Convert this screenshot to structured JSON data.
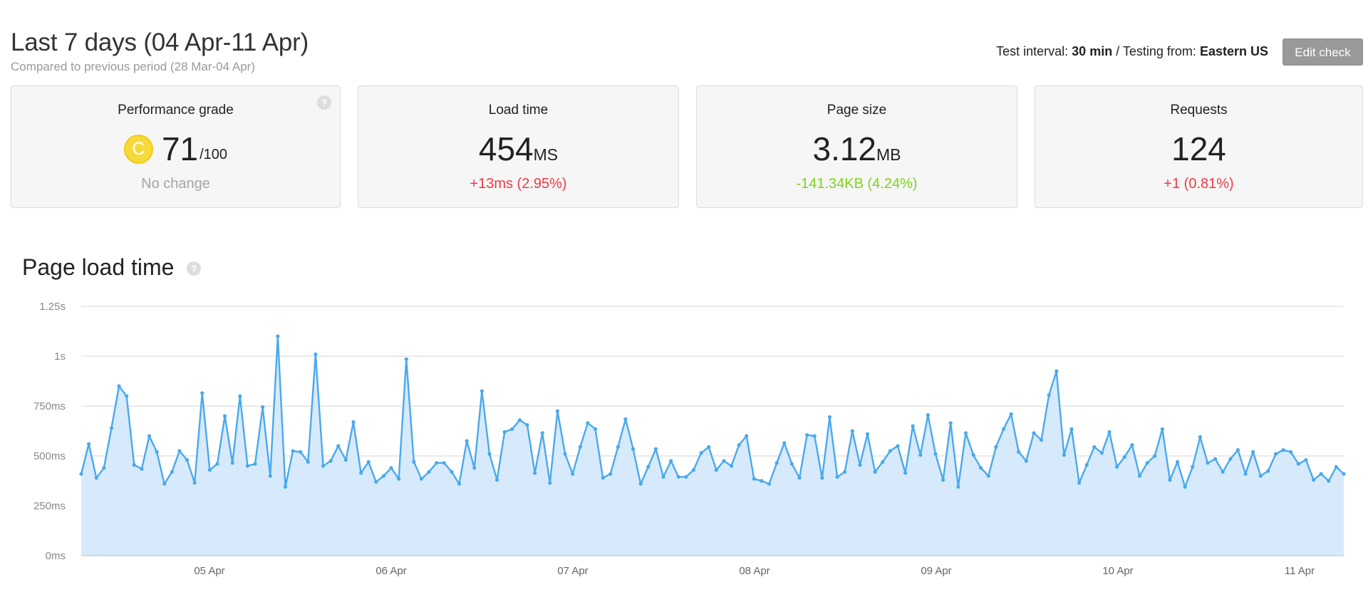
{
  "header": {
    "title": "Last 7 days (04 Apr-11 Apr)",
    "subtitle": "Compared to previous period (28 Mar-04 Apr)",
    "interval_label": "Test interval:",
    "interval_value": "30 min",
    "separator": "/ Testing from:",
    "location": "Eastern US",
    "edit_label": "Edit check"
  },
  "cards": {
    "grade": {
      "title": "Performance grade",
      "letter": "C",
      "score": "71",
      "max": "/100",
      "delta": "No change",
      "help": "?"
    },
    "load": {
      "title": "Load time",
      "value": "454",
      "unit": "MS",
      "delta": "+13ms (2.95%)"
    },
    "size": {
      "title": "Page size",
      "value": "3.12",
      "unit": "MB",
      "delta": "-141.34KB (4.24%)"
    },
    "requests": {
      "title": "Requests",
      "value": "124",
      "delta": "+1 (0.81%)"
    }
  },
  "colors": {
    "negative": "#ee3b44",
    "positive": "#7fd31e",
    "neutral": "#a5a5a5",
    "line": "#4aa9ec",
    "fill": "#d7eafb",
    "grade_badge": "#f6d93a"
  },
  "chart_section": {
    "title": "Page load time",
    "help": "?"
  },
  "chart_data": {
    "type": "area",
    "title": "Page load time",
    "y_tick_labels": [
      "0ms",
      "250ms",
      "500ms",
      "750ms",
      "1s",
      "1.25s"
    ],
    "y_tick_values": [
      0,
      250,
      500,
      750,
      1000,
      1250
    ],
    "x_tick_labels": [
      "05 Apr",
      "06 Apr",
      "07 Apr",
      "08 Apr",
      "09 Apr",
      "10 Apr",
      "11 Apr"
    ],
    "ylim": [
      0,
      1250
    ],
    "grid": true,
    "series": [
      {
        "values": [
          410,
          560,
          390,
          440,
          640,
          850,
          800,
          455,
          435,
          600,
          520,
          360,
          420,
          525,
          480,
          365,
          815,
          430,
          460,
          700,
          465,
          800,
          450,
          460,
          745,
          400,
          1100,
          345,
          525,
          520,
          470,
          1010,
          450,
          475,
          550,
          480,
          670,
          415,
          470,
          370,
          400,
          440,
          385,
          985,
          470,
          385,
          420,
          465,
          465,
          420,
          360,
          575,
          440,
          825,
          510,
          380,
          620,
          635,
          680,
          655,
          415,
          615,
          365,
          725,
          510,
          410,
          545,
          665,
          635,
          390,
          410,
          545,
          685,
          535,
          360,
          445,
          535,
          395,
          475,
          395,
          395,
          430,
          515,
          545,
          430,
          475,
          450,
          555,
          600,
          385,
          375,
          360,
          465,
          565,
          460,
          390,
          605,
          600,
          390,
          695,
          395,
          420,
          625,
          455,
          610,
          420,
          470,
          525,
          550,
          415,
          650,
          505,
          705,
          510,
          380,
          665,
          345,
          615,
          505,
          440,
          400,
          545,
          635,
          710,
          520,
          475,
          615,
          580,
          805,
          925,
          505,
          635,
          365,
          455,
          545,
          515,
          620,
          445,
          495,
          555,
          400,
          465,
          500,
          635,
          380,
          470,
          345,
          445,
          595,
          465,
          485,
          420,
          485,
          530,
          410,
          520,
          400,
          425,
          510,
          530,
          520,
          460,
          480,
          380,
          410,
          375,
          445,
          410
        ]
      }
    ]
  }
}
